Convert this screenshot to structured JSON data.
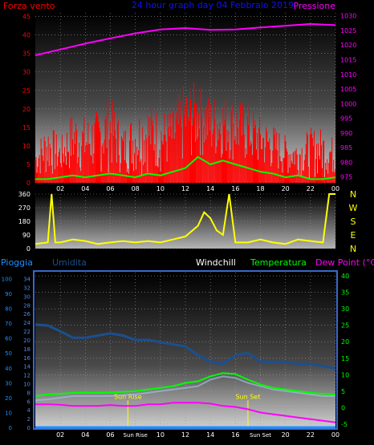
{
  "header": {
    "left_title": "Forza vento",
    "center_title": "24 hour graph day  04 Febbraio 2019",
    "right_title": "Pressione"
  },
  "colors": {
    "wind_max": "#ff0000",
    "wind_avg": "#00ff00",
    "pressure": "#ff00ff",
    "direction": "#ffff00",
    "rain": "#1e90ff",
    "humidity": "#1c4f8f",
    "temperature": "#00ff00",
    "windchill": "#ffffff",
    "dewpoint": "#ff00ff",
    "frame": "#3a67c9"
  },
  "chart_data": [
    {
      "type": "line",
      "name": "wind-pressure",
      "x_ticks": [
        "02",
        "04",
        "06",
        "08",
        "10",
        "12",
        "14",
        "16",
        "18",
        "20",
        "22",
        "00"
      ],
      "left_axis": {
        "label": "Forza vento",
        "ticks": [
          0,
          5,
          10,
          15,
          20,
          25,
          30,
          35,
          40,
          45
        ],
        "range": [
          0,
          46
        ]
      },
      "right_axis": {
        "label": "Pressione",
        "ticks": [
          975,
          980,
          985,
          990,
          995,
          1000,
          1005,
          1010,
          1015,
          1020,
          1025,
          1030
        ],
        "range": [
          973,
          1031
        ]
      },
      "pressure": {
        "x": [
          0,
          2,
          4,
          6,
          8,
          10,
          12,
          14,
          16,
          18,
          20,
          22,
          24
        ],
        "y": [
          1016.5,
          1018.5,
          1020.5,
          1022.3,
          1024,
          1025.3,
          1025.8,
          1025.2,
          1025.3,
          1026,
          1026.6,
          1027.2,
          1026.8
        ]
      },
      "wind_avg": {
        "x": [
          0,
          1,
          2,
          3,
          4,
          5,
          6,
          7,
          8,
          9,
          10,
          11,
          12,
          13,
          14,
          15,
          16,
          17,
          18,
          19,
          20,
          21,
          22,
          23,
          24
        ],
        "y": [
          1,
          1,
          1.5,
          2,
          1.5,
          2,
          2.5,
          2,
          1.5,
          2.5,
          2,
          3,
          4,
          7,
          5,
          6,
          5,
          4,
          3,
          2.5,
          1.5,
          2,
          1,
          1,
          1.5
        ]
      },
      "wind_max_envelope": {
        "x": [
          0,
          1,
          2,
          3,
          4,
          5,
          6,
          7,
          8,
          9,
          10,
          11,
          12,
          13,
          14,
          15,
          16,
          17,
          18,
          19,
          20,
          21,
          22,
          23,
          24
        ],
        "y": [
          10,
          17,
          12,
          20,
          18,
          20,
          24,
          15,
          20,
          22,
          20,
          20,
          28,
          27,
          24,
          24,
          23,
          22,
          18,
          16,
          13,
          12,
          15,
          15,
          12
        ]
      }
    },
    {
      "type": "line",
      "name": "wind-direction",
      "left_axis": {
        "ticks": [
          0,
          90,
          180,
          270,
          360
        ],
        "range": [
          0,
          360
        ]
      },
      "right_axis": {
        "labels": [
          "N",
          "W",
          "S",
          "E",
          "N"
        ]
      },
      "direction": {
        "x": [
          0,
          1,
          1.3,
          1.6,
          2,
          3,
          4,
          5,
          6,
          7,
          8,
          9,
          10,
          11,
          12,
          13,
          13.5,
          14,
          14.5,
          15,
          15.5,
          16,
          17,
          18,
          19,
          20,
          21,
          22,
          23,
          23.5,
          24
        ],
        "y": [
          30,
          40,
          360,
          40,
          40,
          60,
          50,
          30,
          40,
          50,
          40,
          50,
          40,
          60,
          80,
          150,
          240,
          200,
          120,
          90,
          360,
          40,
          40,
          60,
          40,
          30,
          60,
          50,
          40,
          360,
          360
        ]
      }
    },
    {
      "type": "line",
      "name": "temperature-humidity-rain",
      "titles": [
        "Pioggia",
        "Umidita",
        "Windchill",
        "Temperatura",
        "Dew Point (°C)"
      ],
      "x_ticks": [
        "02",
        "04",
        "06",
        "Sun Rise",
        "10",
        "12",
        "14",
        "16",
        "Sun Set",
        "20",
        "22",
        "00"
      ],
      "rain_axis": {
        "ticks": [
          0,
          10,
          20,
          30,
          40,
          50,
          60,
          70,
          80,
          90,
          100
        ],
        "range": [
          0,
          104
        ]
      },
      "humidity_axis": {
        "ticks": [
          0,
          2,
          4,
          6,
          8,
          10,
          12,
          14,
          16,
          18,
          20,
          22,
          24,
          26,
          28,
          30,
          32,
          34
        ],
        "range": [
          0,
          35.4
        ]
      },
      "temp_axis": {
        "ticks": [
          -5,
          0,
          5,
          10,
          15,
          20,
          25,
          30,
          35,
          40
        ],
        "range": [
          -6,
          41
        ]
      },
      "annotations": [
        {
          "text": "Sun Rise",
          "x": 7.4
        },
        {
          "text": "Sun Set",
          "x": 17
        }
      ],
      "humidity": {
        "x": [
          0,
          1,
          2,
          3,
          4,
          5,
          6,
          7,
          8,
          9,
          10,
          11,
          12,
          13,
          14,
          15,
          16,
          17,
          18,
          19,
          20,
          21,
          22,
          23,
          24
        ],
        "y": [
          23.5,
          23.3,
          22,
          20.5,
          20.5,
          21,
          21.5,
          21,
          20,
          20,
          19.5,
          19,
          18.5,
          16.5,
          15,
          14.5,
          16.5,
          17,
          15,
          15,
          15,
          14.5,
          14.5,
          14,
          13.5
        ]
      },
      "temperature": {
        "x": [
          0,
          1,
          2,
          3,
          4,
          5,
          6,
          7,
          8,
          9,
          10,
          11,
          12,
          13,
          14,
          15,
          16,
          17,
          18,
          19,
          20,
          21,
          22,
          23,
          24
        ],
        "y": [
          3.5,
          4,
          4.2,
          4.5,
          4.5,
          4.5,
          4.6,
          4.8,
          5,
          5.5,
          6,
          6.5,
          7.5,
          8,
          9.5,
          10.5,
          10.2,
          8.5,
          7,
          6,
          5.5,
          5,
          4.5,
          4.2,
          4
        ]
      },
      "windchill": {
        "x": [
          0,
          1,
          2,
          3,
          4,
          5,
          6,
          7,
          8,
          9,
          10,
          11,
          12,
          13,
          14,
          15,
          16,
          17,
          18,
          19,
          20,
          21,
          22,
          23,
          24
        ],
        "y": [
          2.2,
          2.5,
          3,
          3.5,
          3.5,
          3.5,
          3.5,
          3.8,
          4,
          4.5,
          5,
          5.5,
          6,
          6.5,
          8.5,
          9.5,
          9,
          7.5,
          6.5,
          5.5,
          5,
          4.5,
          4,
          3.5,
          3.5
        ]
      },
      "dewpoint": {
        "x": [
          0,
          1,
          2,
          3,
          4,
          5,
          6,
          7,
          8,
          9,
          10,
          11,
          12,
          13,
          14,
          15,
          16,
          17,
          18,
          19,
          20,
          21,
          22,
          23,
          24
        ],
        "y": [
          1,
          1,
          0.9,
          0.5,
          0.5,
          0.5,
          0.8,
          0.5,
          0.5,
          1,
          1,
          1.5,
          1.5,
          1.5,
          1.2,
          0.5,
          0.2,
          -0.5,
          -1.5,
          -2,
          -2.5,
          -3,
          -3.5,
          -4,
          -4.5
        ]
      },
      "rain": {
        "x": [
          0,
          24
        ],
        "y": [
          0,
          0
        ]
      }
    }
  ]
}
